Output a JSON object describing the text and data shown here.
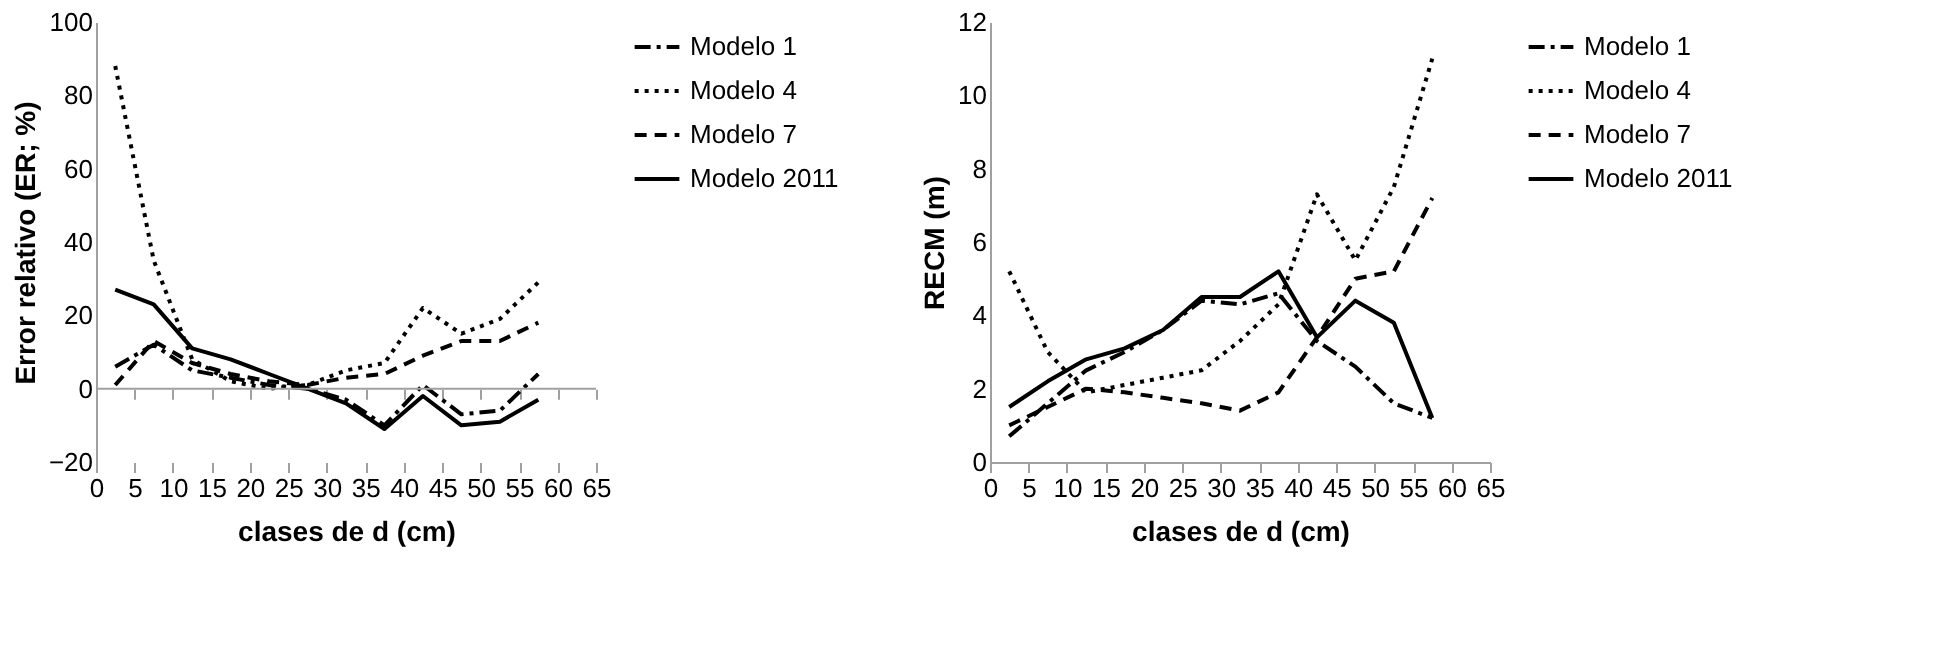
{
  "chart_data": [
    {
      "type": "line",
      "xlabel": "clases de d (cm)",
      "ylabel": "Error relativo (ER; %)",
      "x": [
        2.5,
        7.5,
        12.5,
        17.5,
        22.5,
        27.5,
        32.5,
        37.5,
        42.5,
        47.5,
        52.5,
        57.5
      ],
      "xlim": [
        0,
        65
      ],
      "xticks": [
        0,
        5,
        10,
        15,
        20,
        25,
        30,
        35,
        40,
        45,
        50,
        55,
        60,
        65
      ],
      "ylim": [
        -20,
        100
      ],
      "yticks": [
        -20,
        0,
        20,
        40,
        60,
        80,
        100
      ],
      "grid": false,
      "legend": "right",
      "marker": "none",
      "ref_lines": [
        {
          "axis": "y",
          "value": 0,
          "color": "#a0a0a0"
        }
      ],
      "series": [
        {
          "name": "Modelo 1",
          "color": "#000000",
          "line_style": "dashdot",
          "values": [
            6,
            12,
            5,
            3,
            1,
            0,
            -3,
            -10,
            1,
            -7,
            -6,
            4
          ]
        },
        {
          "name": "Modelo 4",
          "color": "#000000",
          "line_style": "dotted",
          "values": [
            88,
            35,
            8,
            2,
            0,
            1,
            5,
            7,
            22,
            15,
            19,
            29
          ]
        },
        {
          "name": "Modelo 7",
          "color": "#000000",
          "line_style": "dashed",
          "values": [
            1,
            13,
            7,
            4,
            2,
            1,
            3,
            4,
            9,
            13,
            13,
            18
          ]
        },
        {
          "name": "Modelo 2011",
          "color": "#000000",
          "line_style": "solid",
          "values": [
            27,
            23,
            11,
            8,
            4,
            0,
            -4,
            -11,
            -2,
            -10,
            -9,
            -3
          ]
        }
      ]
    },
    {
      "type": "line",
      "xlabel": "clases de d (cm)",
      "ylabel": "RECM (m)",
      "x": [
        2.5,
        7.5,
        12.5,
        17.5,
        22.5,
        27.5,
        32.5,
        37.5,
        42.5,
        47.5,
        52.5,
        57.5
      ],
      "xlim": [
        0,
        65
      ],
      "xticks": [
        0,
        5,
        10,
        15,
        20,
        25,
        30,
        35,
        40,
        45,
        50,
        55,
        60,
        65
      ],
      "ylim": [
        0,
        12
      ],
      "yticks": [
        0,
        2,
        4,
        6,
        8,
        10,
        12
      ],
      "grid": false,
      "legend": "right",
      "marker": "none",
      "series": [
        {
          "name": "Modelo 1",
          "color": "#000000",
          "line_style": "dashdot",
          "values": [
            0.7,
            1.6,
            2.5,
            3.0,
            3.6,
            4.4,
            4.3,
            4.6,
            3.3,
            2.6,
            1.6,
            1.2
          ]
        },
        {
          "name": "Modelo 4",
          "color": "#000000",
          "line_style": "dotted",
          "values": [
            5.2,
            3.0,
            1.9,
            2.1,
            2.3,
            2.5,
            3.3,
            4.3,
            7.3,
            5.5,
            7.5,
            11.0
          ]
        },
        {
          "name": "Modelo 7",
          "color": "#000000",
          "line_style": "dashed",
          "values": [
            1.0,
            1.5,
            2.0,
            1.9,
            1.75,
            1.6,
            1.4,
            1.9,
            3.4,
            5.0,
            5.2,
            7.2
          ]
        },
        {
          "name": "Modelo 2011",
          "color": "#000000",
          "line_style": "solid",
          "values": [
            1.5,
            2.2,
            2.8,
            3.1,
            3.6,
            4.5,
            4.5,
            5.2,
            3.4,
            4.4,
            3.8,
            1.2
          ]
        }
      ]
    }
  ]
}
